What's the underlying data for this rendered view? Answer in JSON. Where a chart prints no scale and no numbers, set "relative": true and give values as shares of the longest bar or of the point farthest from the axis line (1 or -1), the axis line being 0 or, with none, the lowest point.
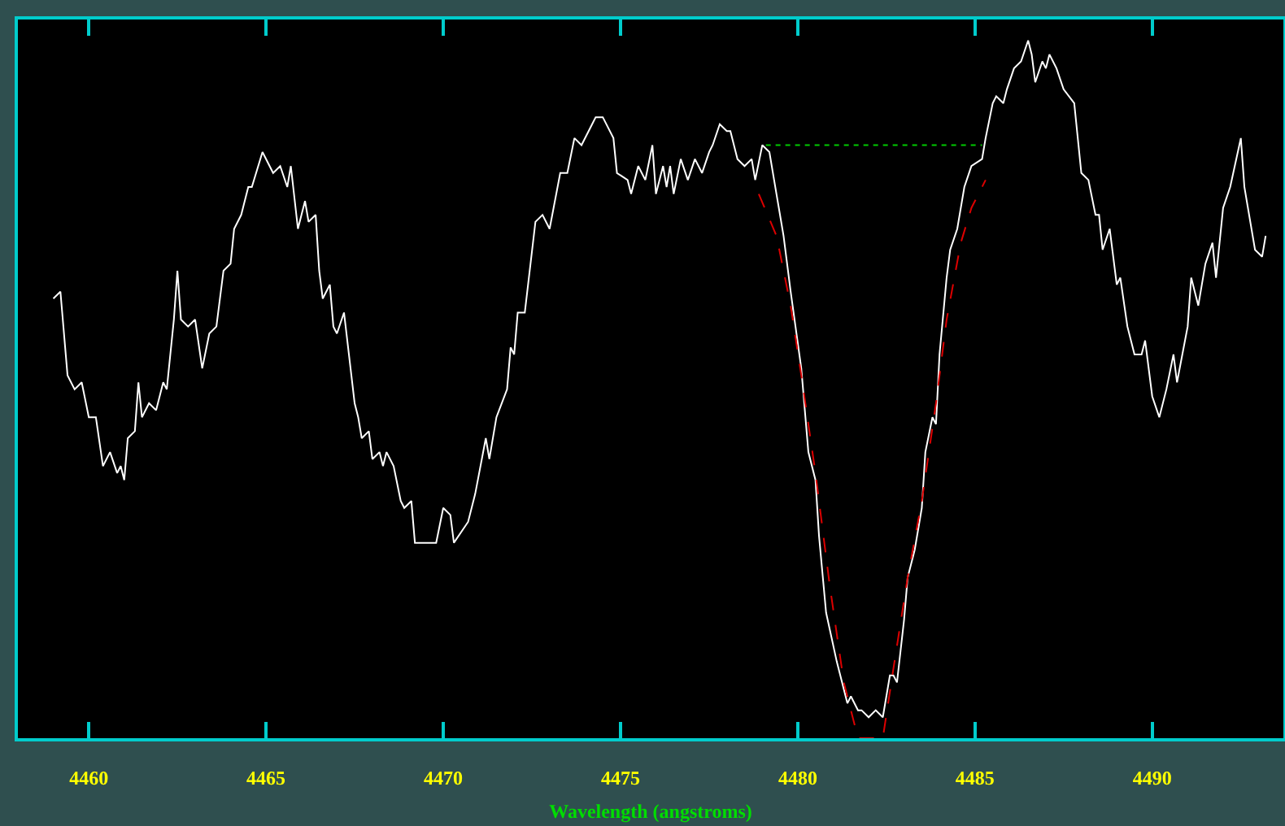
{
  "chart_data": {
    "type": "line",
    "xlabel": "Wavelength (angstroms)",
    "relative": true,
    "xlim": [
      4458.0,
      4493.7
    ],
    "xticks": [
      4460,
      4465,
      4470,
      4475,
      4480,
      4485,
      4490
    ],
    "grid": false,
    "tick_labels": "x",
    "series": [
      {
        "color": "#ffffff",
        "line_style": "solid",
        "x": [
          4459.0,
          4459.2,
          4459.4,
          4459.6,
          4459.8,
          4460.0,
          4460.2,
          4460.4,
          4460.6,
          4460.8,
          4460.9,
          4461.0,
          4461.1,
          4461.3,
          4461.4,
          4461.5,
          4461.7,
          4461.9,
          4462.1,
          4462.2,
          4462.4,
          4462.5,
          4462.6,
          4462.8,
          4463.0,
          4463.2,
          4463.4,
          4463.6,
          4463.8,
          4464.0,
          4464.1,
          4464.3,
          4464.5,
          4464.6,
          4464.9,
          4465.2,
          4465.4,
          4465.6,
          4465.7,
          4465.9,
          4466.1,
          4466.2,
          4466.4,
          4466.5,
          4466.6,
          4466.8,
          4466.9,
          4467.0,
          4467.2,
          4467.5,
          4467.6,
          4467.7,
          4467.9,
          4468.0,
          4468.2,
          4468.3,
          4468.4,
          4468.6,
          4468.8,
          4468.9,
          4469.1,
          4469.2,
          4469.6,
          4469.7,
          4469.8,
          4470.0,
          4470.2,
          4470.3,
          4470.7,
          4470.9,
          4471.2,
          4471.3,
          4471.5,
          4471.8,
          4471.9,
          4472.0,
          4472.1,
          4472.3,
          4472.6,
          4472.8,
          4473.0,
          4473.3,
          4473.5,
          4473.7,
          4473.9,
          4474.2,
          4474.3,
          4474.5,
          4474.8,
          4474.9,
          4475.2,
          4475.3,
          4475.5,
          4475.7,
          4475.9,
          4476.0,
          4476.2,
          4476.3,
          4476.4,
          4476.5,
          4476.7,
          4476.9,
          4477.1,
          4477.3,
          4477.5,
          4477.6,
          4477.8,
          4478.0,
          4478.1,
          4478.3,
          4478.5,
          4478.7,
          4478.8,
          4479.0,
          4479.2,
          4479.4,
          4479.6,
          4479.8,
          4480.1,
          4480.3,
          4480.5,
          4480.6,
          4480.8,
          4481.1,
          4481.4,
          4481.5,
          4481.7,
          4481.8,
          4482.0,
          4482.2,
          4482.4,
          4482.6,
          4482.7,
          4482.8,
          4483.0,
          4483.1,
          4483.3,
          4483.5,
          4483.6,
          4483.8,
          4483.9,
          4484.0,
          4484.2,
          4484.3,
          4484.5,
          4484.7,
          4484.9,
          4485.2,
          4485.3,
          4485.5,
          4485.6,
          4485.8,
          4485.9,
          4486.1,
          4486.3,
          4486.5,
          4486.6,
          4486.7,
          4486.9,
          4487.0,
          4487.1,
          4487.3,
          4487.5,
          4487.8,
          4488.0,
          4488.2,
          4488.4,
          4488.5,
          4488.6,
          4488.8,
          4489.0,
          4489.1,
          4489.3,
          4489.5,
          4489.7,
          4489.8,
          4490.0,
          4490.2,
          4490.4,
          4490.6,
          4490.7,
          4491.0,
          4491.1,
          4491.3,
          4491.5,
          4491.7,
          4491.8,
          4492.0,
          4492.2,
          4492.5,
          4492.6,
          4492.9,
          4493.1,
          4493.2
        ],
        "values": [
          0.63,
          0.64,
          0.52,
          0.5,
          0.51,
          0.46,
          0.46,
          0.39,
          0.41,
          0.38,
          0.39,
          0.37,
          0.43,
          0.44,
          0.51,
          0.46,
          0.48,
          0.47,
          0.51,
          0.5,
          0.6,
          0.67,
          0.6,
          0.59,
          0.6,
          0.53,
          0.58,
          0.59,
          0.67,
          0.68,
          0.73,
          0.75,
          0.79,
          0.79,
          0.84,
          0.81,
          0.82,
          0.79,
          0.82,
          0.73,
          0.77,
          0.74,
          0.75,
          0.67,
          0.63,
          0.65,
          0.59,
          0.58,
          0.61,
          0.48,
          0.46,
          0.43,
          0.44,
          0.4,
          0.41,
          0.39,
          0.41,
          0.39,
          0.34,
          0.33,
          0.34,
          0.28,
          0.28,
          0.28,
          0.28,
          0.33,
          0.32,
          0.28,
          0.31,
          0.35,
          0.43,
          0.4,
          0.46,
          0.5,
          0.56,
          0.55,
          0.61,
          0.61,
          0.74,
          0.75,
          0.73,
          0.81,
          0.81,
          0.86,
          0.85,
          0.88,
          0.89,
          0.89,
          0.86,
          0.81,
          0.8,
          0.78,
          0.82,
          0.8,
          0.85,
          0.78,
          0.82,
          0.79,
          0.82,
          0.78,
          0.83,
          0.8,
          0.83,
          0.81,
          0.84,
          0.85,
          0.88,
          0.87,
          0.87,
          0.83,
          0.82,
          0.83,
          0.8,
          0.85,
          0.84,
          0.78,
          0.72,
          0.64,
          0.53,
          0.41,
          0.37,
          0.29,
          0.18,
          0.11,
          0.05,
          0.06,
          0.04,
          0.04,
          0.03,
          0.04,
          0.03,
          0.09,
          0.09,
          0.08,
          0.17,
          0.23,
          0.27,
          0.33,
          0.41,
          0.46,
          0.45,
          0.55,
          0.66,
          0.7,
          0.73,
          0.79,
          0.82,
          0.83,
          0.86,
          0.91,
          0.92,
          0.91,
          0.93,
          0.96,
          0.97,
          1.0,
          0.98,
          0.94,
          0.97,
          0.96,
          0.98,
          0.96,
          0.93,
          0.91,
          0.81,
          0.8,
          0.75,
          0.75,
          0.7,
          0.73,
          0.65,
          0.66,
          0.59,
          0.55,
          0.55,
          0.57,
          0.49,
          0.46,
          0.5,
          0.55,
          0.51,
          0.59,
          0.66,
          0.62,
          0.68,
          0.71,
          0.66,
          0.76,
          0.79,
          0.86,
          0.79,
          0.7,
          0.69,
          0.72
        ]
      },
      {
        "color": "#00cc00",
        "line_style": "dotted",
        "x": [
          4479.1,
          4485.2
        ],
        "values": [
          0.85,
          0.85
        ]
      },
      {
        "color": "#dd0000",
        "line_style": "dashed",
        "x": [
          4478.9,
          4479.4,
          4479.8,
          4480.1,
          4480.5,
          4480.9,
          4481.3,
          4481.7,
          4482.4,
          4482.7,
          4483.1,
          4483.5,
          4483.9,
          4484.2,
          4484.6,
          4484.9,
          4485.3
        ],
        "values": [
          0.78,
          0.72,
          0.62,
          0.52,
          0.38,
          0.22,
          0.08,
          0.0,
          0.0,
          0.1,
          0.23,
          0.34,
          0.48,
          0.6,
          0.71,
          0.76,
          0.8
        ]
      }
    ]
  }
}
